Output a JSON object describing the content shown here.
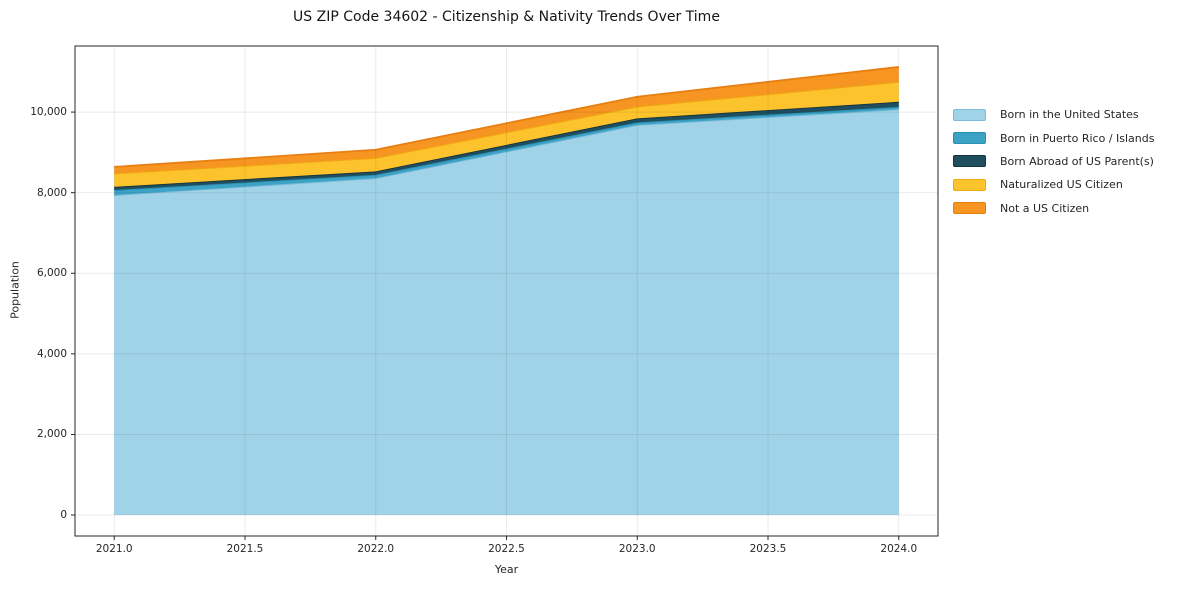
{
  "title": "US ZIP Code 34602 - Citizenship & Nativity Trends Over Time",
  "chart_data": {
    "type": "area",
    "stacked": true,
    "title": "US ZIP Code 34602 - Citizenship & Nativity Trends Over Time",
    "xlabel": "Year",
    "ylabel": "Population",
    "x": [
      2021,
      2022,
      2023,
      2024
    ],
    "series": [
      {
        "name": "Born in the United States",
        "color": "#a1d3e8",
        "edge": "#7cbcd9",
        "values": [
          7940,
          8360,
          9680,
          10070
        ]
      },
      {
        "name": "Born in Puerto Rico / Islands",
        "color": "#3ca3c6",
        "edge": "#2a8fb0",
        "values": [
          125,
          85,
          65,
          60
        ]
      },
      {
        "name": "Born Abroad of US Parent(s)",
        "color": "#1f4e5f",
        "edge": "#14333f",
        "values": [
          80,
          85,
          100,
          125
        ]
      },
      {
        "name": "Naturalized US Citizen",
        "color": "#fcc32d",
        "edge": "#eeab10",
        "values": [
          330,
          330,
          290,
          495
        ]
      },
      {
        "name": "Not a US Citizen",
        "color": "#f79522",
        "edge": "#e87f12",
        "values": [
          165,
          205,
          245,
          370
        ]
      }
    ],
    "xticks": [
      "2021.0",
      "2021.5",
      "2022.0",
      "2022.5",
      "2023.0",
      "2023.5",
      "2024.0"
    ],
    "yticks": [
      "0",
      "2,000",
      "4,000",
      "6,000",
      "8,000",
      "10,000"
    ],
    "xlim": [
      2020.85,
      2024.15
    ],
    "ylim": [
      -520,
      11640
    ],
    "grid": true,
    "legend_position": "right",
    "grid_color": "rgba(0,0,0,0.08)",
    "spine_color": "#262626"
  }
}
